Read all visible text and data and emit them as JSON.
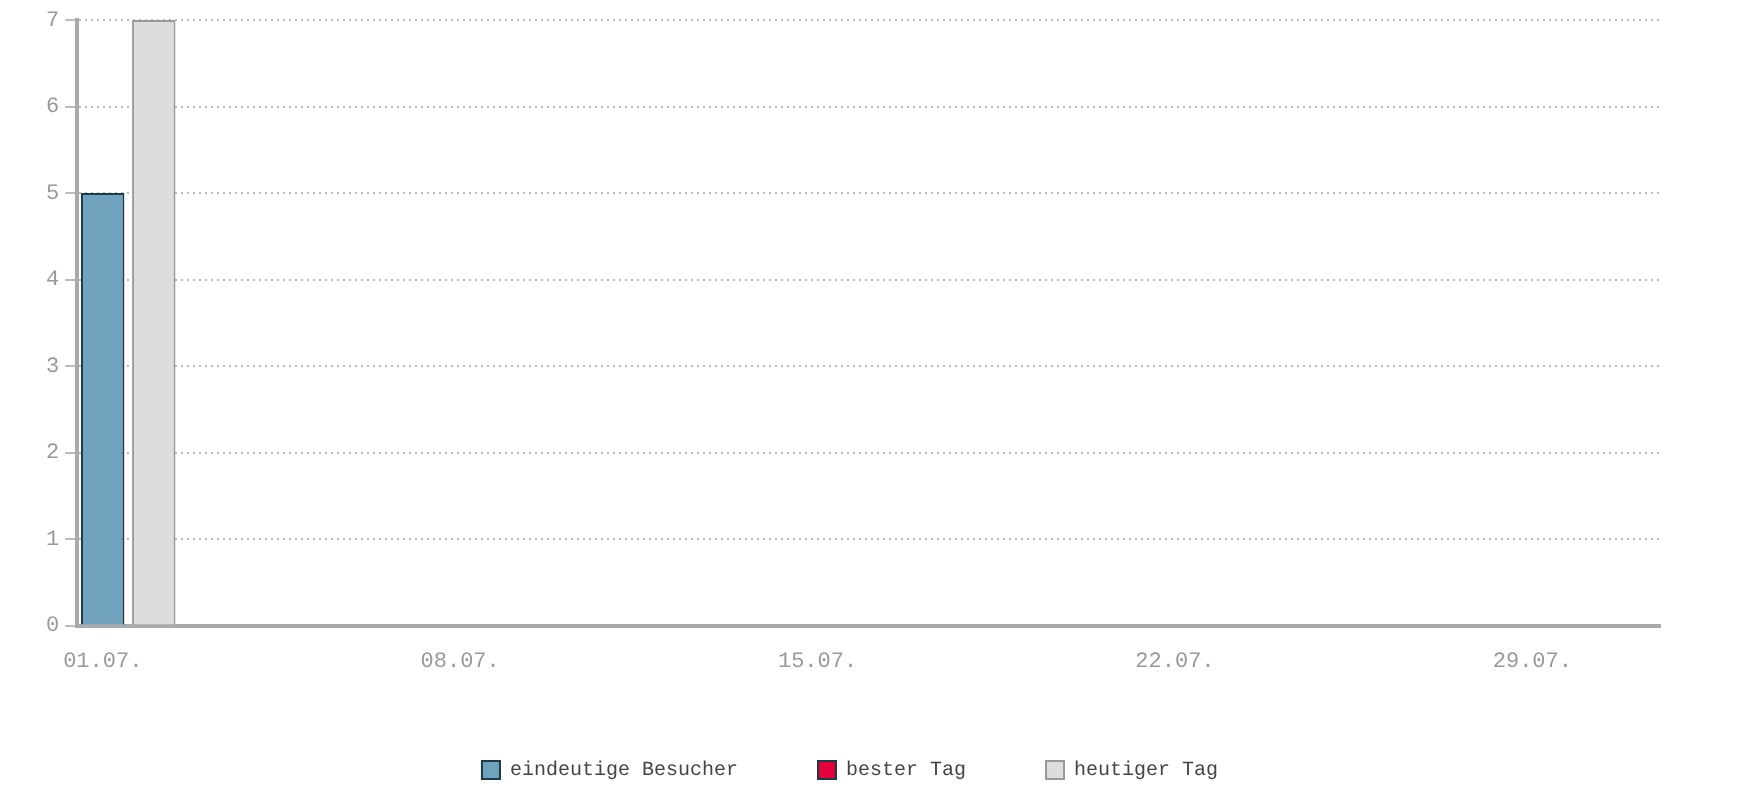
{
  "chart_data": {
    "type": "bar",
    "stacked": true,
    "categories": [
      "01.07.",
      null,
      null,
      null,
      null,
      null,
      null,
      "08.07.",
      null,
      null,
      null,
      null,
      null,
      null,
      "15.07.",
      null,
      null,
      null,
      null,
      null,
      null,
      "22.07.",
      null,
      null,
      null,
      null,
      null,
      null,
      "29.07.",
      null,
      null
    ],
    "series": [
      {
        "name": "eindeutige Besucher",
        "color": "#6fa3bd",
        "values": [
          5,
          null,
          null,
          null,
          null,
          null,
          null,
          null,
          null,
          null,
          null,
          null,
          null,
          null,
          null,
          null,
          null,
          null,
          null,
          null,
          null,
          null,
          null,
          null,
          null,
          null,
          null,
          null,
          null,
          null,
          null
        ]
      },
      {
        "name": "bester Tag",
        "color": "#e4003a",
        "values": [
          null,
          null,
          null,
          null,
          null,
          null,
          null,
          null,
          null,
          null,
          null,
          null,
          null,
          null,
          null,
          null,
          null,
          null,
          null,
          null,
          null,
          null,
          null,
          null,
          null,
          null,
          null,
          null,
          null,
          null,
          null
        ]
      },
      {
        "name": "heutiger Tag",
        "color": "#dddddd",
        "values": [
          null,
          7,
          null,
          null,
          null,
          null,
          null,
          null,
          null,
          null,
          null,
          null,
          null,
          null,
          null,
          null,
          null,
          null,
          null,
          null,
          null,
          null,
          null,
          null,
          null,
          null,
          null,
          null,
          null,
          null,
          null
        ]
      }
    ],
    "ylim": [
      0,
      7
    ],
    "yticks": [
      0,
      1,
      2,
      3,
      4,
      5,
      6,
      7
    ],
    "grid": "y",
    "legend": "bottom"
  }
}
